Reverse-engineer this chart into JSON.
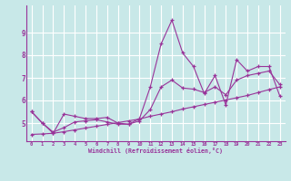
{
  "xlabel": "Windchill (Refroidissement éolien,°C)",
  "x_values": [
    0,
    1,
    2,
    3,
    4,
    5,
    6,
    7,
    8,
    9,
    10,
    11,
    12,
    13,
    14,
    15,
    16,
    17,
    18,
    19,
    20,
    21,
    22,
    23
  ],
  "line_jagged": [
    5.5,
    5.0,
    4.55,
    5.4,
    5.3,
    5.2,
    5.2,
    5.25,
    5.0,
    4.95,
    5.2,
    6.6,
    8.5,
    9.55,
    8.1,
    7.5,
    6.3,
    7.1,
    5.8,
    7.8,
    7.3,
    7.5,
    7.5,
    6.2
  ],
  "line_low": [
    4.5,
    4.52,
    4.55,
    4.62,
    4.7,
    4.78,
    4.86,
    4.94,
    5.02,
    5.1,
    5.18,
    5.3,
    5.4,
    5.5,
    5.62,
    5.72,
    5.82,
    5.92,
    6.02,
    6.12,
    6.22,
    6.35,
    6.48,
    6.6
  ],
  "line_mid": [
    5.5,
    5.0,
    4.6,
    4.8,
    5.05,
    5.1,
    5.15,
    5.05,
    4.95,
    4.95,
    5.1,
    5.6,
    6.6,
    6.9,
    6.55,
    6.5,
    6.35,
    6.6,
    6.25,
    6.9,
    7.1,
    7.2,
    7.3,
    6.7
  ],
  "bg_color": "#c8e8e8",
  "line_color": "#993399",
  "grid_color": "#b8d8d8",
  "ylim": [
    4.2,
    10.2
  ],
  "xlim": [
    -0.5,
    23.5
  ],
  "yticks": [
    5,
    6,
    7,
    8,
    9
  ],
  "xticks": [
    0,
    1,
    2,
    3,
    4,
    5,
    6,
    7,
    8,
    9,
    10,
    11,
    12,
    13,
    14,
    15,
    16,
    17,
    18,
    19,
    20,
    21,
    22,
    23
  ]
}
